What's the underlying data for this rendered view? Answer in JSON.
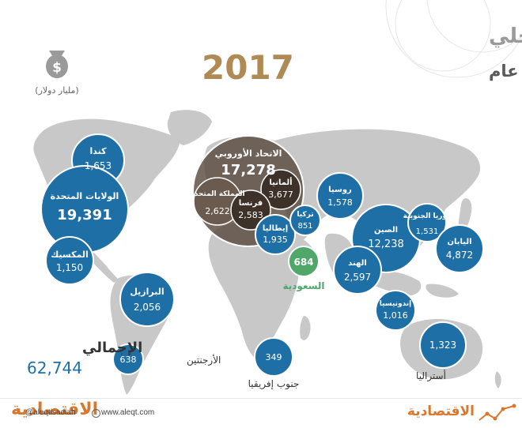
{
  "title": {
    "line1": "الناتج المحلي",
    "line2": "لدول مجموعة العشرين عام",
    "year": "2017"
  },
  "unit": "(مليار دولار)",
  "unit_icon": "money-bag-icon",
  "colors": {
    "bubble_blue": "#1e6fa6",
    "bubble_green": "#4fa86a",
    "bubble_dark": "#5a4a40",
    "title_gray": "#9a9a9a",
    "year_brown": "#b08a55",
    "brand_orange": "#d9772e",
    "map_gray": "#c8c8c8"
  },
  "countries": [
    {
      "key": "canada",
      "name": "كندا",
      "value": "1,653",
      "style": "blue"
    },
    {
      "key": "usa",
      "name": "الولايات المتحدة",
      "value": "19,391",
      "style": "blue"
    },
    {
      "key": "mexico",
      "name": "المكسيك",
      "value": "1,150",
      "style": "blue"
    },
    {
      "key": "brazil",
      "name": "البرازيل",
      "value": "2,056",
      "style": "blue"
    },
    {
      "key": "argentina",
      "name": "الأرجنتين",
      "value": "638",
      "style": "blue"
    },
    {
      "key": "eu",
      "name": "الاتحاد الأوروبي",
      "value": "17,278",
      "style": "eu"
    },
    {
      "key": "uk",
      "name": "المملكة المتحدة",
      "value": "2,622",
      "style": "inner"
    },
    {
      "key": "germany",
      "name": "ألمانيا",
      "value": "3,677",
      "style": "inner"
    },
    {
      "key": "france",
      "name": "فرنسا",
      "value": "2,583",
      "style": "inner"
    },
    {
      "key": "italy",
      "name": "إيطاليا",
      "value": "1,935",
      "style": "blue"
    },
    {
      "key": "turkey",
      "name": "تركيا",
      "value": "851",
      "style": "blue"
    },
    {
      "key": "russia",
      "name": "روسيا",
      "value": "1,578",
      "style": "blue"
    },
    {
      "key": "saudi",
      "name": "السعودية",
      "value": "684",
      "style": "green"
    },
    {
      "key": "china",
      "name": "الصين",
      "value": "12,238",
      "style": "blue"
    },
    {
      "key": "korea",
      "name": "كوريا الجنوبية",
      "value": "1,531",
      "style": "blue"
    },
    {
      "key": "japan",
      "name": "اليابان",
      "value": "4,872",
      "style": "blue"
    },
    {
      "key": "india",
      "name": "الهند",
      "value": "2,597",
      "style": "blue"
    },
    {
      "key": "indonesia",
      "name": "إندونيسيا",
      "value": "1,016",
      "style": "blue"
    },
    {
      "key": "south_africa",
      "name": "جنوب إفريقيا",
      "value": "349",
      "style": "blue"
    },
    {
      "key": "australia",
      "name": "أستراليا",
      "value": "1,323",
      "style": "blue"
    }
  ],
  "total": {
    "label": "الإجمالي",
    "value": "62,744"
  },
  "footer": {
    "logo": "الاقتصادية",
    "social": "@aleqtisadiah",
    "website": "www.aleqt.com",
    "brand": "الاقتصادية",
    "trend_icon": "trend-line-icon"
  }
}
